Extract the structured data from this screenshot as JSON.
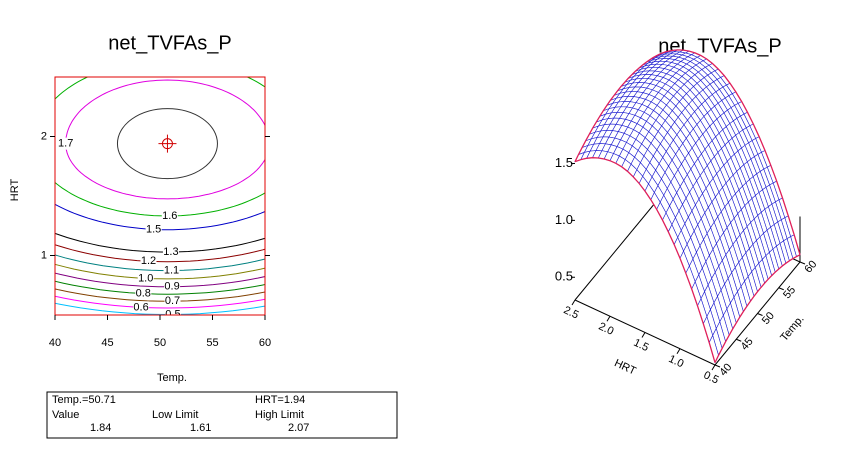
{
  "chart_data": [
    {
      "type": "contour",
      "title": "net_TVFAs_P",
      "xlabel": "Temp.",
      "ylabel": "HRT",
      "xlim": [
        40,
        60
      ],
      "xticks": [
        40,
        45,
        50,
        55,
        60
      ],
      "ylim": [
        0.5,
        2.5
      ],
      "yticks": [
        1,
        2
      ],
      "levels": [
        {
          "value": 1.7,
          "color": "#e000e0"
        },
        {
          "value": 1.6,
          "color": "#00b000"
        },
        {
          "value": 1.5,
          "color": "#0000c8"
        },
        {
          "value": 1.3,
          "color": "#000000"
        },
        {
          "value": 1.2,
          "color": "#8b0000"
        },
        {
          "value": 1.1,
          "color": "#008080"
        },
        {
          "value": 1,
          "label": "1.0",
          "color": "#808000"
        },
        {
          "value": 0.9,
          "color": "#800080"
        },
        {
          "value": 0.8,
          "color": "#008000"
        },
        {
          "value": 0.7,
          "color": "#804000"
        },
        {
          "value": 0.6,
          "color": "#ff00ff"
        },
        {
          "value": 0.5,
          "color": "#00c0ff"
        }
      ],
      "optimum": {
        "x": {
          "value": 50.71,
          "label": "Temp.=50.71"
        },
        "y": {
          "value": 1.94,
          "label": "HRT=1.94"
        },
        "headers": [
          "Value",
          "Low Limit",
          "High Limit"
        ],
        "values": [
          1.84,
          1.61,
          2.07
        ]
      }
    },
    {
      "type": "surface",
      "title": "net_TVFAs_P",
      "xlabel": "HRT",
      "ylabel": "Temp.",
      "xlim": [
        0.5,
        2.5
      ],
      "xticks": [
        {
          "value": 0.5,
          "label": "0.5"
        },
        {
          "value": 1,
          "label": "1.0"
        },
        {
          "value": 1.5,
          "label": "1.5"
        },
        {
          "value": 2,
          "label": "2.0"
        },
        {
          "value": 2.5,
          "label": "2.5"
        }
      ],
      "ylim": [
        40,
        60
      ],
      "yticks": [
        40,
        45,
        50,
        55,
        60
      ],
      "zlim": [
        0.3,
        1.9
      ],
      "zticks": [
        0.5,
        {
          "value": 1,
          "label": "1.0"
        },
        1.5
      ],
      "mesh_color": "#2020d0",
      "edge_color": "#e0205a"
    }
  ]
}
